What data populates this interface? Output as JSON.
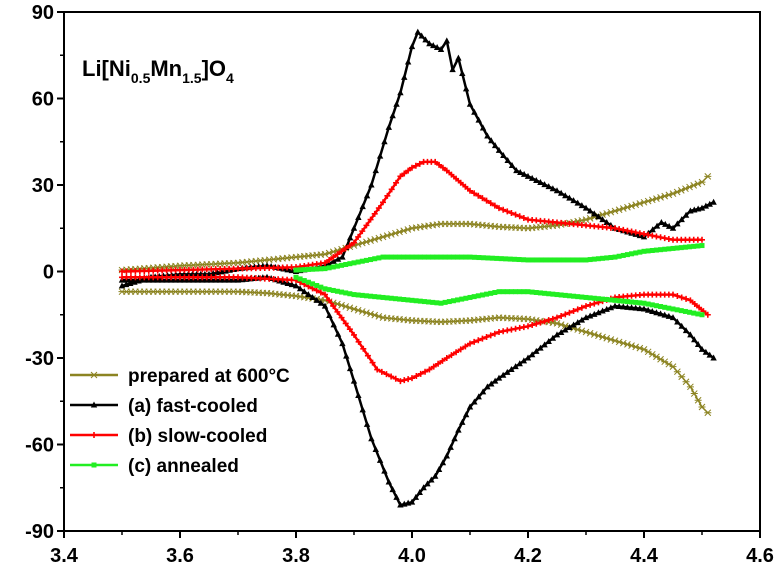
{
  "chart_data": {
    "type": "line",
    "title": {
      "base": "Li[Ni",
      "sub1": "0.5",
      "mid": "Mn",
      "sub2": "1.5",
      "end": "]O",
      "sub3": "4"
    },
    "xlabel": "",
    "ylabel": "",
    "xlim": [
      3.4,
      4.6
    ],
    "ylim": [
      -90,
      90
    ],
    "x_ticks": [
      "3.4",
      "3.6",
      "3.8",
      "4.0",
      "4.2",
      "4.4",
      "4.6"
    ],
    "y_ticks": [
      "90",
      "60",
      "30",
      "0",
      "-30",
      "-60",
      "-90"
    ],
    "legend_position": "bottom-left",
    "series": [
      {
        "name": "prepared at 600°C",
        "color": "#8c8422",
        "marker": "asterisk",
        "upper": [
          [
            3.5,
            0.5
          ],
          [
            3.6,
            2
          ],
          [
            3.7,
            3
          ],
          [
            3.8,
            5
          ],
          [
            3.85,
            6
          ],
          [
            3.9,
            9
          ],
          [
            3.95,
            12
          ],
          [
            4.0,
            15
          ],
          [
            4.05,
            16.5
          ],
          [
            4.1,
            16.5
          ],
          [
            4.15,
            15.5
          ],
          [
            4.2,
            15
          ],
          [
            4.25,
            16
          ],
          [
            4.3,
            18
          ],
          [
            4.35,
            21
          ],
          [
            4.4,
            24
          ],
          [
            4.45,
            27
          ],
          [
            4.5,
            31
          ],
          [
            4.51,
            33
          ]
        ],
        "lower": [
          [
            3.5,
            -7
          ],
          [
            3.6,
            -7
          ],
          [
            3.7,
            -7
          ],
          [
            3.75,
            -7.5
          ],
          [
            3.8,
            -8.5
          ],
          [
            3.85,
            -10
          ],
          [
            3.9,
            -13
          ],
          [
            3.95,
            -16
          ],
          [
            4.0,
            -17
          ],
          [
            4.05,
            -17.5
          ],
          [
            4.1,
            -17
          ],
          [
            4.15,
            -16
          ],
          [
            4.2,
            -16.5
          ],
          [
            4.25,
            -18
          ],
          [
            4.3,
            -21
          ],
          [
            4.35,
            -24
          ],
          [
            4.4,
            -27
          ],
          [
            4.45,
            -33
          ],
          [
            4.48,
            -40
          ],
          [
            4.5,
            -47
          ],
          [
            4.51,
            -49
          ]
        ]
      },
      {
        "name": "(a) fast-cooled",
        "color": "#000000",
        "marker": "triangle",
        "upper": [
          [
            3.5,
            -5
          ],
          [
            3.55,
            -2
          ],
          [
            3.6,
            -1
          ],
          [
            3.65,
            -1
          ],
          [
            3.7,
            1
          ],
          [
            3.75,
            2
          ],
          [
            3.8,
            0
          ],
          [
            3.85,
            2
          ],
          [
            3.88,
            5
          ],
          [
            3.9,
            15
          ],
          [
            3.93,
            30
          ],
          [
            3.96,
            50
          ],
          [
            3.98,
            62
          ],
          [
            4.0,
            78
          ],
          [
            4.01,
            83
          ],
          [
            4.03,
            79
          ],
          [
            4.05,
            77
          ],
          [
            4.06,
            80
          ],
          [
            4.07,
            70
          ],
          [
            4.08,
            74
          ],
          [
            4.1,
            58
          ],
          [
            4.13,
            47
          ],
          [
            4.15,
            42
          ],
          [
            4.18,
            35
          ],
          [
            4.2,
            33
          ],
          [
            4.25,
            28
          ],
          [
            4.3,
            22
          ],
          [
            4.35,
            15
          ],
          [
            4.4,
            12
          ],
          [
            4.43,
            17
          ],
          [
            4.45,
            15
          ],
          [
            4.48,
            21
          ],
          [
            4.5,
            22
          ],
          [
            4.52,
            24
          ]
        ],
        "lower": [
          [
            3.5,
            -3
          ],
          [
            3.6,
            -3
          ],
          [
            3.7,
            -3
          ],
          [
            3.75,
            -2
          ],
          [
            3.8,
            -5
          ],
          [
            3.85,
            -12
          ],
          [
            3.88,
            -25
          ],
          [
            3.9,
            -38
          ],
          [
            3.93,
            -58
          ],
          [
            3.96,
            -73
          ],
          [
            3.98,
            -81
          ],
          [
            4.0,
            -80
          ],
          [
            4.02,
            -75
          ],
          [
            4.04,
            -71
          ],
          [
            4.06,
            -64
          ],
          [
            4.08,
            -55
          ],
          [
            4.1,
            -47
          ],
          [
            4.13,
            -40
          ],
          [
            4.15,
            -37
          ],
          [
            4.2,
            -30
          ],
          [
            4.25,
            -22
          ],
          [
            4.3,
            -16
          ],
          [
            4.35,
            -12
          ],
          [
            4.4,
            -13
          ],
          [
            4.45,
            -16
          ],
          [
            4.48,
            -22
          ],
          [
            4.5,
            -27
          ],
          [
            4.52,
            -30
          ]
        ]
      },
      {
        "name": "(b) slow-cooled",
        "color": "#ff0000",
        "marker": "plus",
        "upper": [
          [
            3.5,
            0
          ],
          [
            3.6,
            0.5
          ],
          [
            3.7,
            1
          ],
          [
            3.8,
            1.5
          ],
          [
            3.85,
            3
          ],
          [
            3.9,
            10
          ],
          [
            3.95,
            24
          ],
          [
            3.98,
            33
          ],
          [
            4.0,
            36
          ],
          [
            4.02,
            38
          ],
          [
            4.04,
            38
          ],
          [
            4.06,
            35
          ],
          [
            4.1,
            28
          ],
          [
            4.15,
            22
          ],
          [
            4.2,
            18
          ],
          [
            4.25,
            17
          ],
          [
            4.3,
            16
          ],
          [
            4.35,
            15
          ],
          [
            4.4,
            13
          ],
          [
            4.45,
            11
          ],
          [
            4.5,
            11
          ]
        ],
        "lower": [
          [
            3.5,
            -2
          ],
          [
            3.6,
            -2
          ],
          [
            3.7,
            -2
          ],
          [
            3.8,
            -3
          ],
          [
            3.85,
            -8
          ],
          [
            3.9,
            -22
          ],
          [
            3.94,
            -34
          ],
          [
            3.98,
            -38
          ],
          [
            4.0,
            -37
          ],
          [
            4.03,
            -34
          ],
          [
            4.06,
            -30
          ],
          [
            4.1,
            -25
          ],
          [
            4.15,
            -21
          ],
          [
            4.2,
            -19
          ],
          [
            4.25,
            -16
          ],
          [
            4.3,
            -12
          ],
          [
            4.35,
            -9
          ],
          [
            4.4,
            -8
          ],
          [
            4.45,
            -8
          ],
          [
            4.48,
            -10
          ],
          [
            4.51,
            -15
          ]
        ]
      },
      {
        "name": "(c) annealed",
        "color": "#22ee22",
        "marker": "square",
        "upper": [
          [
            3.8,
            0.5
          ],
          [
            3.85,
            1
          ],
          [
            3.9,
            3
          ],
          [
            3.95,
            5
          ],
          [
            4.0,
            5
          ],
          [
            4.05,
            5
          ],
          [
            4.1,
            5
          ],
          [
            4.2,
            4
          ],
          [
            4.3,
            4
          ],
          [
            4.35,
            5
          ],
          [
            4.4,
            7
          ],
          [
            4.45,
            8
          ],
          [
            4.5,
            9
          ]
        ],
        "lower": [
          [
            3.8,
            -2
          ],
          [
            3.85,
            -6
          ],
          [
            3.9,
            -8
          ],
          [
            3.95,
            -9
          ],
          [
            4.0,
            -10
          ],
          [
            4.05,
            -11
          ],
          [
            4.1,
            -9
          ],
          [
            4.15,
            -7
          ],
          [
            4.2,
            -7
          ],
          [
            4.25,
            -8
          ],
          [
            4.3,
            -9
          ],
          [
            4.35,
            -10
          ],
          [
            4.4,
            -11
          ],
          [
            4.45,
            -13
          ],
          [
            4.5,
            -15
          ]
        ]
      }
    ]
  }
}
